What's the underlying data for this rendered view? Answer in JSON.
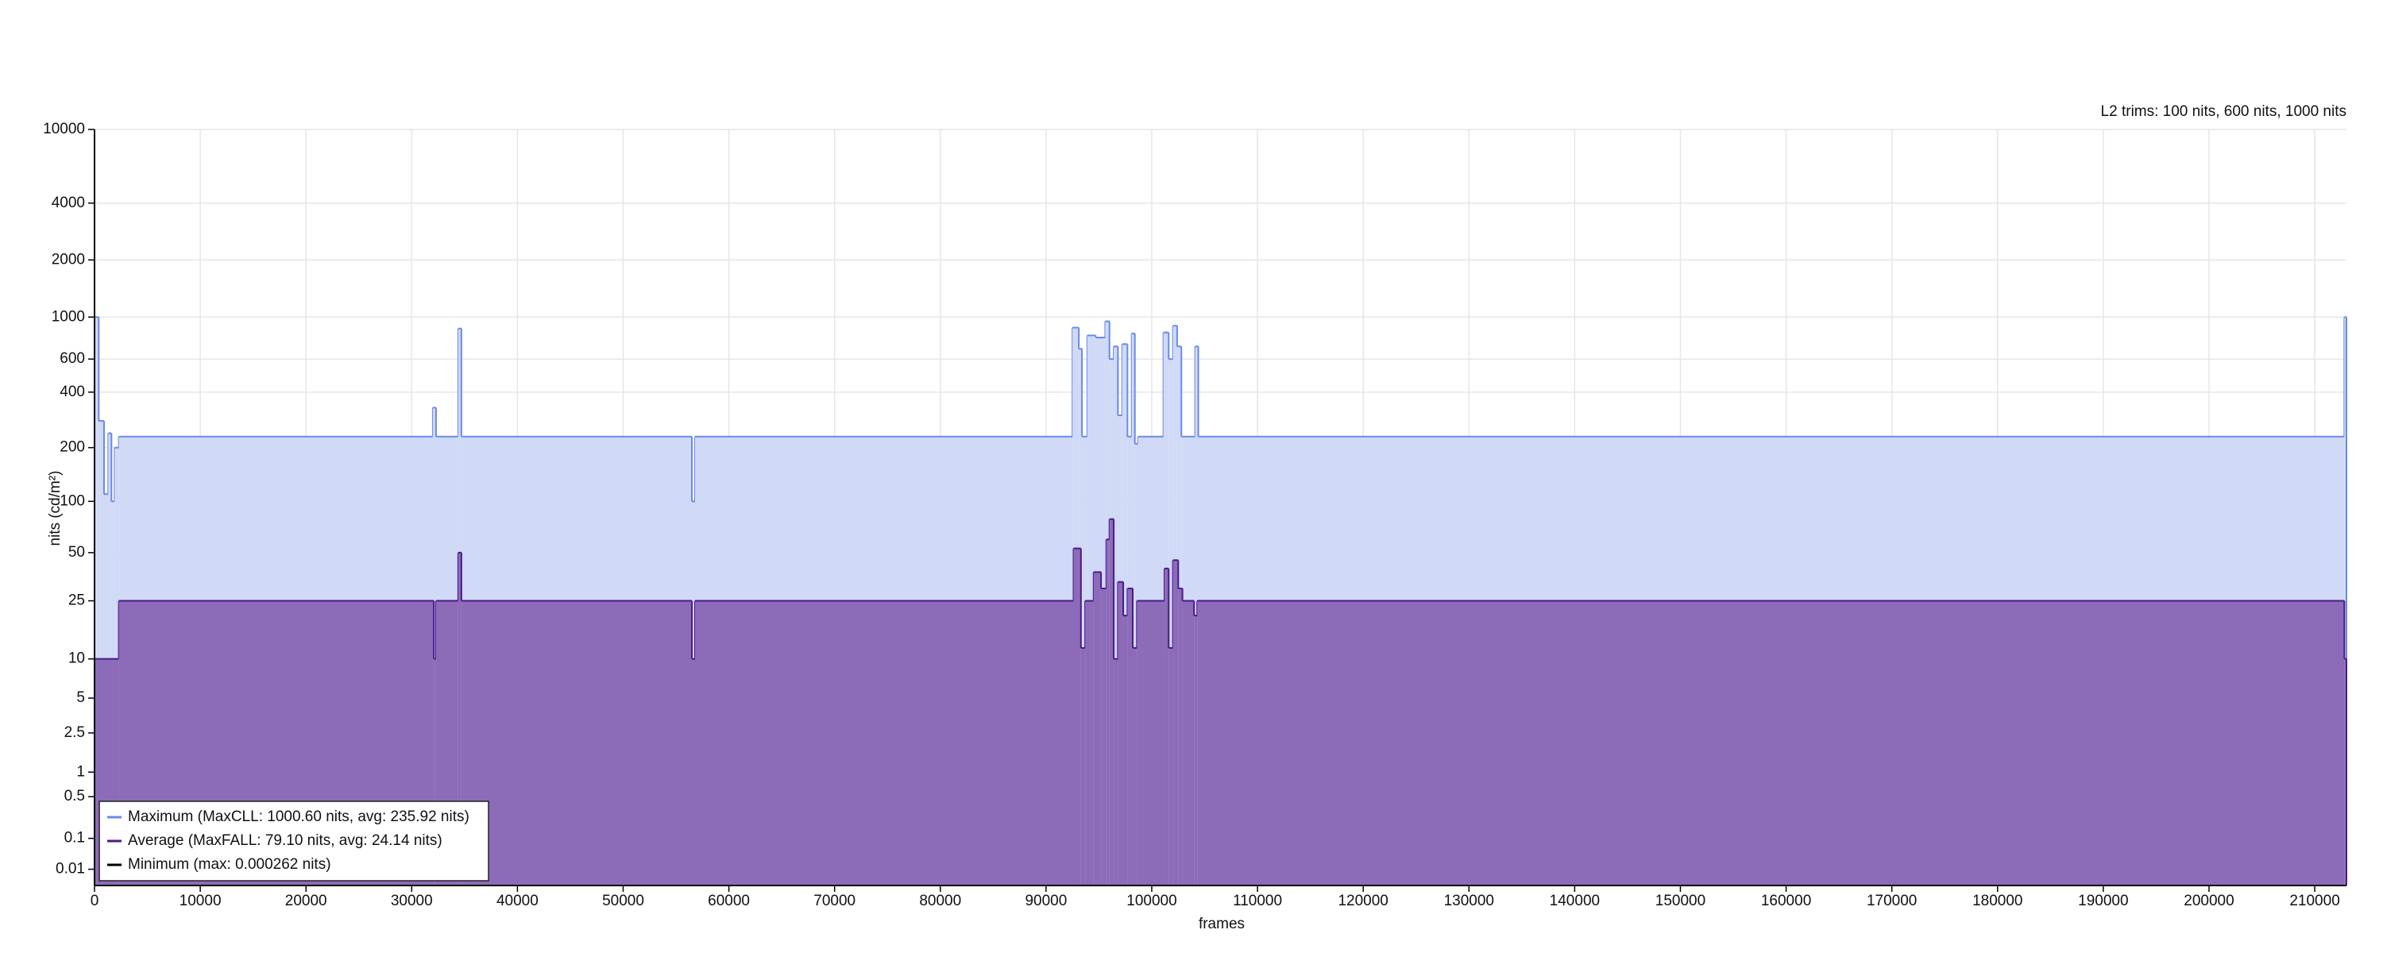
{
  "chart_data": {
    "type": "step-area",
    "annotation": "L2 trims: 100 nits, 600 nits, 1000 nits",
    "x_label": "frames",
    "y_label": "nits (cd/m²)",
    "yscale": "pq",
    "grid": true,
    "legend": "lower left",
    "xlim": [
      0,
      213000
    ],
    "xticks": [
      0,
      10000,
      20000,
      30000,
      40000,
      50000,
      60000,
      70000,
      80000,
      90000,
      100000,
      110000,
      120000,
      130000,
      140000,
      150000,
      160000,
      170000,
      180000,
      190000,
      200000,
      210000
    ],
    "ylim": [
      0,
      10000
    ],
    "yticks": [
      0.01,
      0.1,
      0.5,
      1,
      2.5,
      5,
      10,
      25,
      50,
      100,
      200,
      400,
      600,
      1000,
      2000,
      4000,
      10000
    ],
    "series": [
      {
        "name": "Maximum (MaxCLL: 1000.60 nits, avg: 235.92 nits)",
        "color": "#6a8ae6",
        "fill": "#d0d9f6",
        "x": [
          0,
          400,
          900,
          1300,
          1600,
          1900,
          2300,
          32000,
          32300,
          34400,
          34700,
          56500,
          56800,
          92500,
          93100,
          93400,
          93900,
          94700,
          95600,
          96000,
          96400,
          96800,
          97200,
          97700,
          98100,
          98400,
          98700,
          101100,
          101600,
          102000,
          102400,
          102800,
          103200,
          104100,
          104400,
          212800
        ],
        "values": [
          1000,
          280,
          110,
          240,
          100,
          200,
          230,
          330,
          230,
          870,
          230,
          100,
          230,
          880,
          680,
          230,
          800,
          780,
          950,
          600,
          700,
          300,
          720,
          230,
          820,
          210,
          230,
          830,
          600,
          900,
          700,
          230,
          230,
          700,
          230,
          1000
        ]
      },
      {
        "name": "Average (MaxFALL: 79.10 nits, avg: 24.14 nits)",
        "color": "#4b1a8c",
        "fill": "#8c6bb9",
        "x": [
          0,
          2300,
          32100,
          32300,
          34400,
          34700,
          56500,
          56800,
          92600,
          93300,
          93700,
          94500,
          95200,
          95700,
          96000,
          96400,
          96800,
          97300,
          97700,
          98200,
          98600,
          101200,
          101600,
          102000,
          102500,
          102900,
          104000,
          104300,
          212800
        ],
        "values": [
          10,
          25,
          10,
          25,
          50,
          25,
          10,
          25,
          53,
          12,
          25,
          38,
          30,
          60,
          79,
          10,
          33,
          20,
          30,
          12,
          25,
          40,
          12,
          45,
          30,
          25,
          20,
          25,
          10
        ]
      },
      {
        "name": "Minimum (max: 0.000262 nits)",
        "color": "#000000",
        "fill": "none",
        "x": [
          0,
          212800
        ],
        "values": [
          0,
          0
        ]
      }
    ]
  }
}
